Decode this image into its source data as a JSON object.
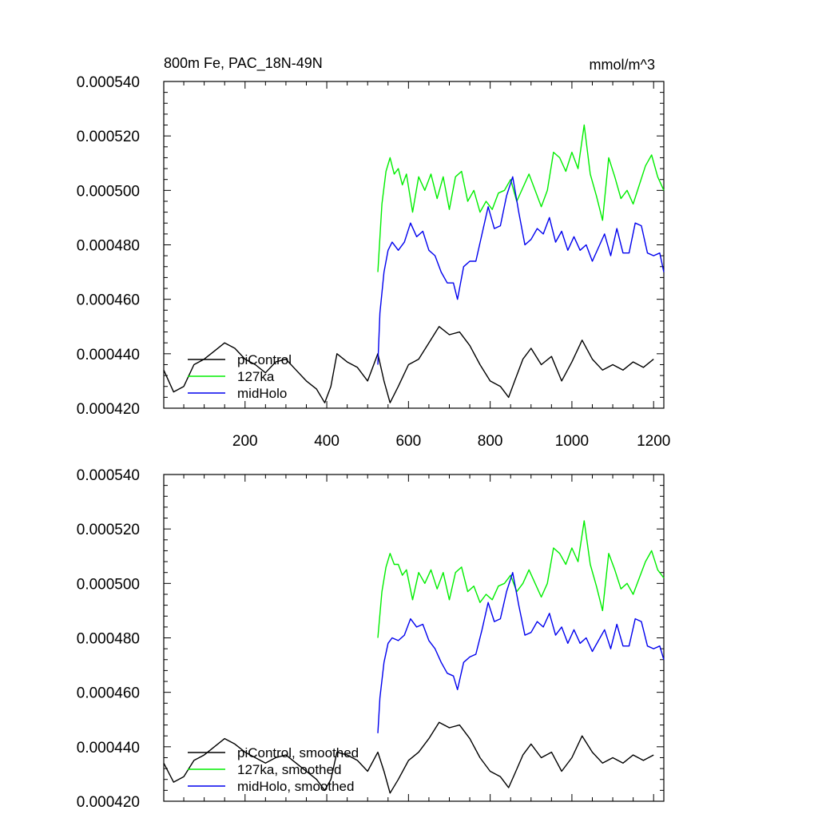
{
  "chart_data": [
    {
      "type": "line",
      "title": "800m Fe, PAC_18N-49N",
      "units": "mmol/m^3",
      "xlim": [
        1,
        1225
      ],
      "ylim": [
        0.00042,
        0.00054
      ],
      "xticks": [
        "200",
        "400",
        "600",
        "800",
        "1000",
        "1200"
      ],
      "yticks": [
        "0.000420",
        "0.000440",
        "0.000460",
        "0.000480",
        "0.000500",
        "0.000520",
        "0.000540"
      ],
      "legend": [
        "piControl",
        "127ka",
        "midHolo"
      ],
      "series": [
        {
          "name": "piControl",
          "color": "#000000",
          "x": [
            1,
            25,
            50,
            75,
            100,
            125,
            150,
            175,
            200,
            225,
            250,
            275,
            300,
            325,
            350,
            375,
            395,
            410,
            425,
            450,
            475,
            500,
            525,
            540,
            555,
            575,
            600,
            625,
            650,
            675,
            700,
            725,
            750,
            775,
            800,
            825,
            845,
            860,
            880,
            900,
            925,
            950,
            975,
            1000,
            1025,
            1050,
            1075,
            1100,
            1125,
            1150,
            1175,
            1200
          ],
          "y": [
            0.000434,
            0.000426,
            0.000428,
            0.000436,
            0.000438,
            0.000441,
            0.000444,
            0.000442,
            0.000438,
            0.000436,
            0.000433,
            0.000437,
            0.000438,
            0.000434,
            0.00043,
            0.000427,
            0.000422,
            0.000428,
            0.00044,
            0.000437,
            0.000435,
            0.00043,
            0.00044,
            0.00043,
            0.000422,
            0.000428,
            0.000436,
            0.000438,
            0.000444,
            0.00045,
            0.000447,
            0.000448,
            0.000443,
            0.000436,
            0.00043,
            0.000428,
            0.000424,
            0.00043,
            0.000438,
            0.000442,
            0.000436,
            0.000439,
            0.00043,
            0.000437,
            0.000445,
            0.000438,
            0.000434,
            0.000436,
            0.000434,
            0.000437,
            0.000435,
            0.000438
          ]
        },
        {
          "name": "127ka",
          "color": "#00ee00",
          "x": [
            525,
            535,
            545,
            555,
            565,
            575,
            585,
            595,
            610,
            625,
            640,
            655,
            670,
            685,
            700,
            715,
            730,
            745,
            760,
            775,
            790,
            805,
            820,
            835,
            850,
            865,
            880,
            895,
            910,
            925,
            940,
            955,
            970,
            985,
            1000,
            1015,
            1030,
            1045,
            1060,
            1075,
            1090,
            1105,
            1120,
            1135,
            1150,
            1165,
            1180,
            1195,
            1210,
            1225
          ],
          "y": [
            0.00047,
            0.000495,
            0.000507,
            0.000512,
            0.000506,
            0.000508,
            0.000502,
            0.000506,
            0.000492,
            0.000505,
            0.0005,
            0.000506,
            0.000497,
            0.000505,
            0.000493,
            0.000505,
            0.000507,
            0.000496,
            0.0005,
            0.000492,
            0.000496,
            0.000493,
            0.000499,
            0.0005,
            0.000504,
            0.000496,
            0.000501,
            0.000506,
            0.0005,
            0.000494,
            0.0005,
            0.000514,
            0.000512,
            0.000507,
            0.000514,
            0.000508,
            0.000524,
            0.000506,
            0.000498,
            0.000489,
            0.000512,
            0.000505,
            0.000497,
            0.0005,
            0.000495,
            0.000502,
            0.000509,
            0.000513,
            0.000505,
            0.0005
          ]
        },
        {
          "name": "midHolo",
          "color": "#0000ee",
          "x": [
            525,
            530,
            540,
            550,
            560,
            575,
            590,
            605,
            620,
            635,
            650,
            665,
            680,
            695,
            710,
            720,
            735,
            750,
            765,
            780,
            795,
            810,
            825,
            840,
            855,
            870,
            885,
            900,
            915,
            930,
            945,
            960,
            975,
            990,
            1005,
            1020,
            1035,
            1050,
            1065,
            1080,
            1095,
            1110,
            1125,
            1140,
            1155,
            1170,
            1185,
            1200,
            1215,
            1225
          ],
          "y": [
            0.000436,
            0.000455,
            0.00047,
            0.000478,
            0.000481,
            0.000478,
            0.000481,
            0.000488,
            0.000483,
            0.000485,
            0.000478,
            0.000476,
            0.00047,
            0.000466,
            0.000466,
            0.00046,
            0.000472,
            0.000474,
            0.000474,
            0.000484,
            0.000494,
            0.000486,
            0.000487,
            0.000498,
            0.000505,
            0.000492,
            0.00048,
            0.000482,
            0.000486,
            0.000484,
            0.00049,
            0.000481,
            0.000485,
            0.000478,
            0.000483,
            0.000478,
            0.00048,
            0.000474,
            0.000479,
            0.000484,
            0.000476,
            0.000486,
            0.000477,
            0.000477,
            0.000488,
            0.000487,
            0.000477,
            0.000476,
            0.000477,
            0.00047
          ]
        }
      ]
    },
    {
      "type": "line",
      "xlim": [
        1,
        1225
      ],
      "ylim": [
        0.00042,
        0.00054
      ],
      "yticks": [
        "0.000420",
        "0.000440",
        "0.000460",
        "0.000480",
        "0.000500",
        "0.000520",
        "0.000540"
      ],
      "legend": [
        "piControl, smoothed",
        "127ka, smoothed",
        "midHolo, smoothed"
      ],
      "series": [
        {
          "name": "piControl, smoothed",
          "color": "#000000",
          "x": [
            1,
            25,
            50,
            75,
            100,
            125,
            150,
            175,
            200,
            225,
            250,
            275,
            300,
            325,
            350,
            375,
            395,
            410,
            425,
            450,
            475,
            500,
            525,
            540,
            555,
            575,
            600,
            625,
            650,
            675,
            700,
            725,
            750,
            775,
            800,
            825,
            845,
            860,
            880,
            900,
            925,
            950,
            975,
            1000,
            1025,
            1050,
            1075,
            1100,
            1125,
            1150,
            1175,
            1200
          ],
          "y": [
            0.000434,
            0.000427,
            0.000429,
            0.000435,
            0.000437,
            0.00044,
            0.000443,
            0.000441,
            0.000438,
            0.000436,
            0.000434,
            0.000436,
            0.000437,
            0.000434,
            0.000431,
            0.000428,
            0.000424,
            0.000428,
            0.000438,
            0.000437,
            0.000435,
            0.000431,
            0.000438,
            0.000431,
            0.000423,
            0.000428,
            0.000435,
            0.000438,
            0.000443,
            0.000449,
            0.000447,
            0.000448,
            0.000443,
            0.000436,
            0.000431,
            0.000429,
            0.000425,
            0.00043,
            0.000437,
            0.000441,
            0.000436,
            0.000438,
            0.000431,
            0.000436,
            0.000444,
            0.000438,
            0.000434,
            0.000436,
            0.000434,
            0.000437,
            0.000435,
            0.000437
          ]
        },
        {
          "name": "127ka, smoothed",
          "color": "#00ee00",
          "x": [
            525,
            535,
            545,
            555,
            565,
            575,
            585,
            595,
            610,
            625,
            640,
            655,
            670,
            685,
            700,
            715,
            730,
            745,
            760,
            775,
            790,
            805,
            820,
            835,
            850,
            865,
            880,
            895,
            910,
            925,
            940,
            955,
            970,
            985,
            1000,
            1015,
            1030,
            1045,
            1060,
            1075,
            1090,
            1105,
            1120,
            1135,
            1150,
            1165,
            1180,
            1195,
            1210,
            1225
          ],
          "y": [
            0.00048,
            0.000497,
            0.000506,
            0.000511,
            0.000507,
            0.000507,
            0.000503,
            0.000505,
            0.000494,
            0.000504,
            0.0005,
            0.000505,
            0.000498,
            0.000504,
            0.000494,
            0.000504,
            0.000506,
            0.000497,
            0.000499,
            0.000493,
            0.000496,
            0.000494,
            0.000499,
            0.0005,
            0.000503,
            0.000497,
            0.0005,
            0.000505,
            0.0005,
            0.000495,
            0.0005,
            0.000513,
            0.000511,
            0.000507,
            0.000513,
            0.000508,
            0.000523,
            0.000507,
            0.000499,
            0.00049,
            0.000511,
            0.000505,
            0.000498,
            0.0005,
            0.000496,
            0.000502,
            0.000508,
            0.000512,
            0.000505,
            0.000502
          ]
        },
        {
          "name": "midHolo, smoothed",
          "color": "#0000ee",
          "x": [
            525,
            530,
            540,
            550,
            560,
            575,
            590,
            605,
            620,
            635,
            650,
            665,
            680,
            695,
            710,
            720,
            735,
            750,
            765,
            780,
            795,
            810,
            825,
            840,
            855,
            870,
            885,
            900,
            915,
            930,
            945,
            960,
            975,
            990,
            1005,
            1020,
            1035,
            1050,
            1065,
            1080,
            1095,
            1110,
            1125,
            1140,
            1155,
            1170,
            1185,
            1200,
            1215,
            1225
          ],
          "y": [
            0.000445,
            0.000458,
            0.000471,
            0.000478,
            0.00048,
            0.000479,
            0.000481,
            0.000487,
            0.000484,
            0.000485,
            0.000479,
            0.000476,
            0.000471,
            0.000467,
            0.000466,
            0.000461,
            0.000471,
            0.000473,
            0.000474,
            0.000483,
            0.000493,
            0.000486,
            0.000487,
            0.000497,
            0.000504,
            0.000492,
            0.000481,
            0.000482,
            0.000486,
            0.000484,
            0.000489,
            0.000481,
            0.000484,
            0.000478,
            0.000483,
            0.000478,
            0.00048,
            0.000475,
            0.000479,
            0.000483,
            0.000476,
            0.000485,
            0.000477,
            0.000477,
            0.000487,
            0.000486,
            0.000477,
            0.000476,
            0.000477,
            0.000472
          ]
        }
      ]
    }
  ]
}
